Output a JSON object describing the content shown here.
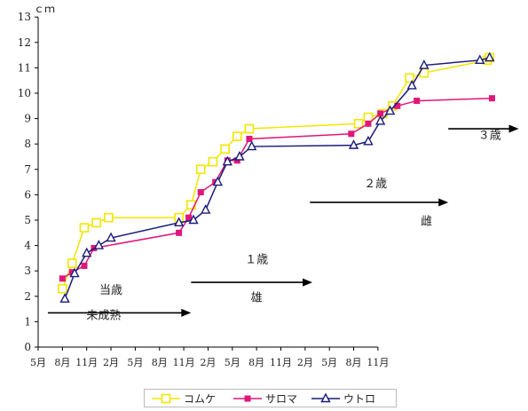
{
  "chart_data": {
    "type": "line",
    "ylabel": "ｃｍ",
    "ylim": [
      0,
      13
    ],
    "yticks": [
      0,
      1,
      2,
      3,
      4,
      5,
      6,
      7,
      8,
      9,
      10,
      11,
      12,
      13
    ],
    "xticks": [
      "5月",
      "8月",
      "11月",
      "2月",
      "5月",
      "8月",
      "11月",
      "2月",
      "5月",
      "8月",
      "11月",
      "2月",
      "5月",
      "8月",
      "11月"
    ],
    "grid": false,
    "legend_position": "bottom",
    "series": [
      {
        "name": "コムケ",
        "color": "#f2e600",
        "marker": "square-open",
        "points": [
          [
            1.0,
            2.3
          ],
          [
            1.4,
            3.3
          ],
          [
            1.9,
            4.7
          ],
          [
            2.4,
            4.9
          ],
          [
            2.9,
            5.1
          ],
          [
            5.8,
            5.1
          ],
          [
            6.3,
            5.6
          ],
          [
            6.7,
            7.0
          ],
          [
            7.2,
            7.3
          ],
          [
            7.7,
            7.8
          ],
          [
            8.2,
            8.3
          ],
          [
            8.7,
            8.6
          ],
          [
            13.2,
            8.8
          ],
          [
            13.6,
            9.05
          ],
          [
            14.2,
            9.2
          ],
          [
            14.6,
            9.5
          ],
          [
            15.3,
            10.6
          ],
          [
            15.9,
            10.8
          ],
          [
            18.5,
            11.3
          ],
          [
            18.6,
            11.4
          ]
        ]
      },
      {
        "name": "サロマ",
        "color": "#e0167a",
        "marker": "square-filled",
        "points": [
          [
            1.0,
            2.7
          ],
          [
            1.4,
            2.95
          ],
          [
            1.9,
            3.2
          ],
          [
            2.3,
            3.9
          ],
          [
            5.8,
            4.5
          ],
          [
            6.2,
            5.1
          ],
          [
            6.7,
            6.1
          ],
          [
            7.3,
            6.5
          ],
          [
            7.8,
            7.35
          ],
          [
            8.2,
            7.35
          ],
          [
            8.7,
            8.2
          ],
          [
            12.9,
            8.4
          ],
          [
            13.6,
            8.8
          ],
          [
            14.1,
            9.2
          ],
          [
            14.8,
            9.5
          ],
          [
            15.6,
            9.7
          ],
          [
            18.7,
            9.8
          ]
        ]
      },
      {
        "name": "ウトロ",
        "color": "#1b1b7a",
        "marker": "triangle-open",
        "points": [
          [
            1.1,
            1.9
          ],
          [
            1.5,
            2.9
          ],
          [
            2.0,
            3.7
          ],
          [
            2.5,
            4.0
          ],
          [
            3.0,
            4.3
          ],
          [
            5.8,
            4.9
          ],
          [
            6.4,
            5.0
          ],
          [
            6.9,
            5.4
          ],
          [
            7.4,
            6.5
          ],
          [
            7.8,
            7.3
          ],
          [
            8.3,
            7.5
          ],
          [
            8.8,
            7.9
          ],
          [
            13.0,
            7.95
          ],
          [
            13.6,
            8.1
          ],
          [
            14.1,
            8.9
          ],
          [
            14.5,
            9.3
          ],
          [
            15.4,
            10.3
          ],
          [
            15.9,
            11.1
          ],
          [
            18.2,
            11.3
          ],
          [
            18.6,
            11.4
          ]
        ]
      }
    ],
    "annotations": [
      {
        "text": "当歳",
        "x": 3.0,
        "y": 2.1
      },
      {
        "text": "未成熟",
        "x": 2.7,
        "y": 1.1
      },
      {
        "text": "１歳",
        "x": 9.0,
        "y": 3.3
      },
      {
        "text": "雄",
        "x": 9.0,
        "y": 1.8
      },
      {
        "text": "２歳",
        "x": 13.9,
        "y": 6.3
      },
      {
        "text": "雌",
        "x": 16.0,
        "y": 4.8
      },
      {
        "text": "３歳",
        "x": 18.6,
        "y": 8.2
      }
    ],
    "arrows": [
      {
        "x1": 0.4,
        "x2": 6.3,
        "y": 1.35
      },
      {
        "x1": 6.3,
        "x2": 11.3,
        "y": 2.55
      },
      {
        "x1": 11.2,
        "x2": 16.9,
        "y": 5.7
      },
      {
        "x1": 16.9,
        "x2": 19.8,
        "y": 8.6
      }
    ]
  }
}
